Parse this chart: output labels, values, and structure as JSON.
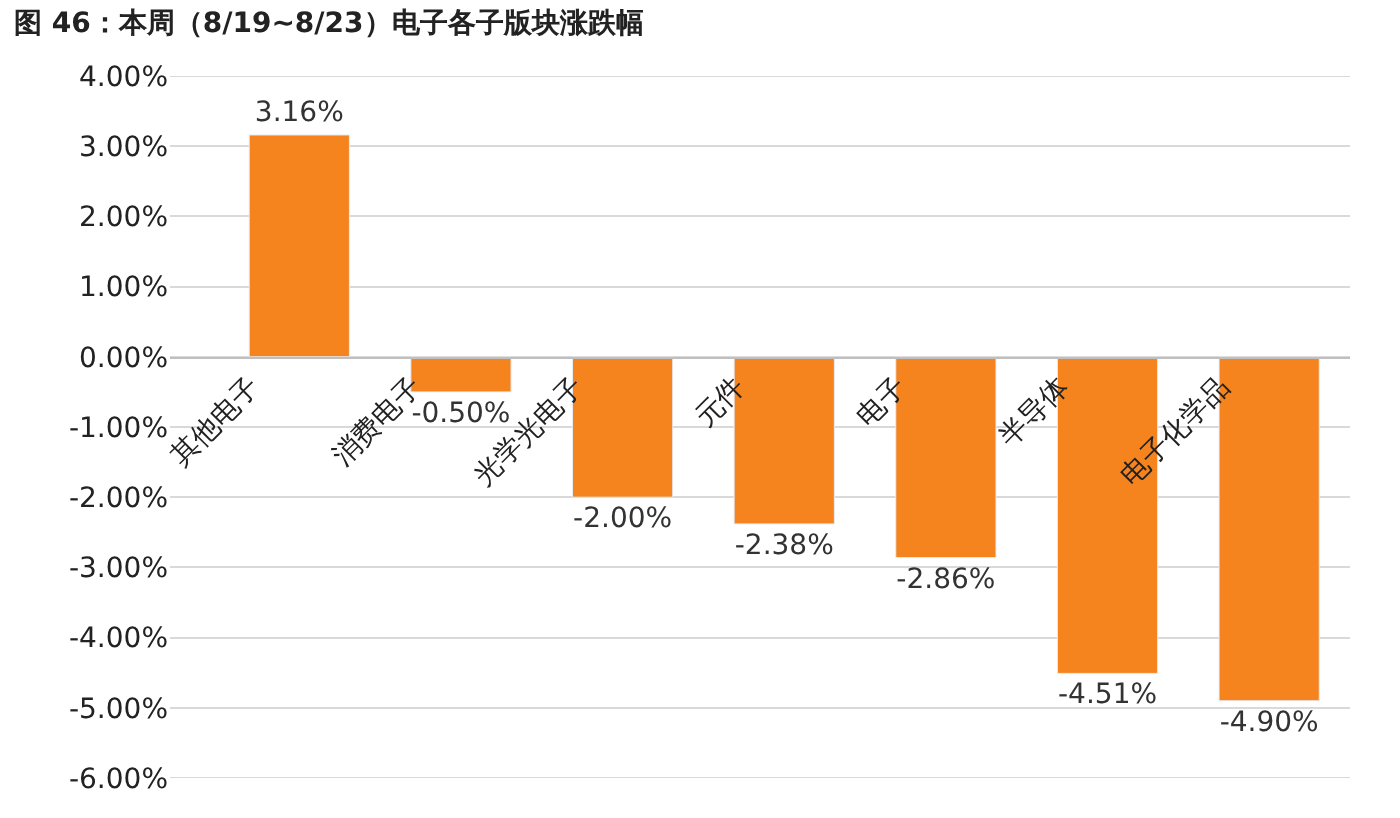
{
  "chart_data": {
    "type": "bar",
    "title": "图 46：本周（8/19~8/23）电子各子版块涨跌幅",
    "categories": [
      "其他电子",
      "消费电子",
      "光学光电子",
      "元件",
      "电子",
      "半导体",
      "电子化学品"
    ],
    "values": [
      3.16,
      -0.5,
      -2.0,
      -2.38,
      -2.86,
      -4.51,
      -4.9
    ],
    "value_labels": [
      "3.16%",
      "-0.50%",
      "-2.00%",
      "-2.38%",
      "-2.86%",
      "-4.51%",
      "-4.90%"
    ],
    "color": "#f5841f",
    "ylim": [
      -6,
      4
    ],
    "yticks": [
      {
        "value": 4,
        "label": "4.00%"
      },
      {
        "value": 3,
        "label": "3.00%"
      },
      {
        "value": 2,
        "label": "2.00%"
      },
      {
        "value": 1,
        "label": "1.00%"
      },
      {
        "value": 0,
        "label": "0.00%"
      },
      {
        "value": -1,
        "label": "-1.00%"
      },
      {
        "value": -2,
        "label": "-2.00%"
      },
      {
        "value": -3,
        "label": "-3.00%"
      },
      {
        "value": -4,
        "label": "-4.00%"
      },
      {
        "value": -5,
        "label": "-5.00%"
      },
      {
        "value": -6,
        "label": "-6.00%"
      }
    ],
    "grid": "y"
  }
}
